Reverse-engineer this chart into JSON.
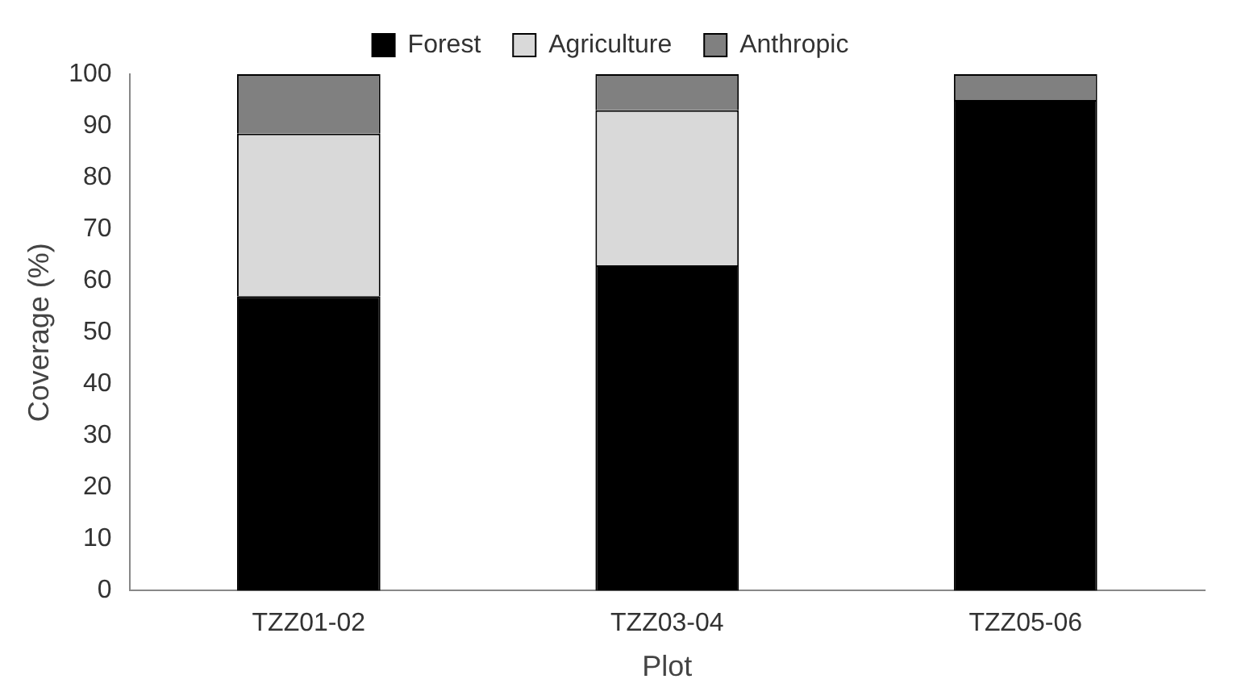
{
  "chart_data": {
    "type": "bar",
    "stacked": true,
    "xlabel": "Plot",
    "ylabel": "Coverage (%)",
    "categories": [
      "TZZ01-02",
      "TZZ03-04",
      "TZZ05-06"
    ],
    "series": [
      {
        "name": "Forest",
        "color": "#000000",
        "values": [
          57,
          63,
          95
        ]
      },
      {
        "name": "Agriculture",
        "color": "#d9d9d9",
        "values": [
          31.5,
          30,
          0
        ]
      },
      {
        "name": "Anthropic",
        "color": "#808080",
        "values": [
          11.5,
          7,
          5
        ]
      }
    ],
    "ylim": [
      0,
      100
    ],
    "yticks": [
      0,
      10,
      20,
      30,
      40,
      50,
      60,
      70,
      80,
      90,
      100
    ],
    "grid": false,
    "legend": "top"
  }
}
